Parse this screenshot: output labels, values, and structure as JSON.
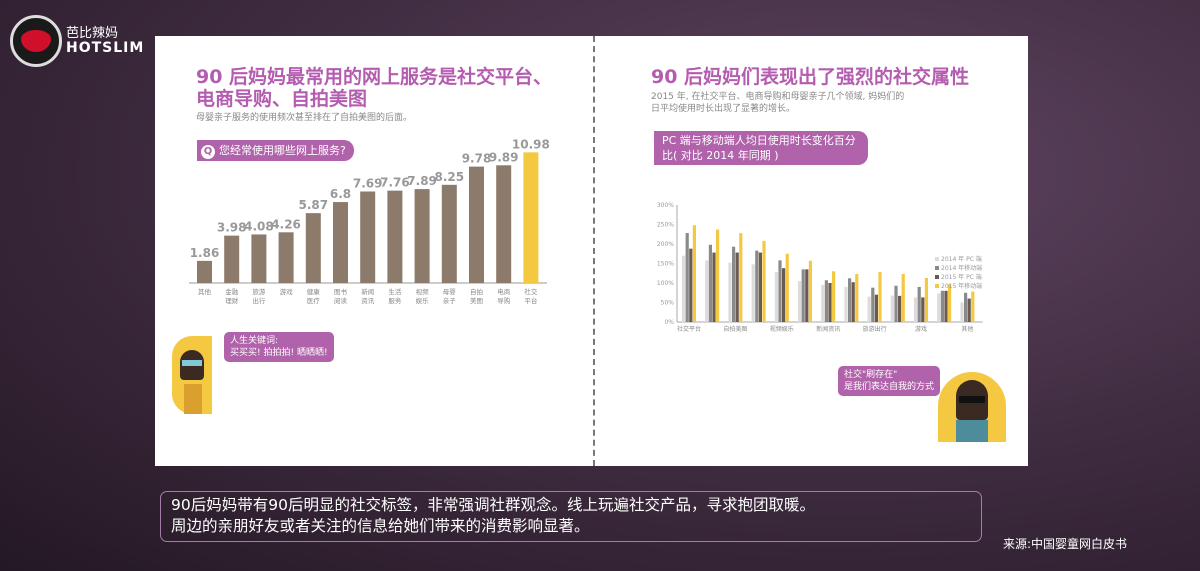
{
  "logo": {
    "cn": "芭比辣妈",
    "en": "HOTSLIM"
  },
  "left": {
    "title_line1": "90 后妈妈最常用的网上服务是社交平台、",
    "title_line2": "电商导购、自拍美图",
    "subtitle": "母婴亲子服务的使用频次甚至排在了自拍美图的后面。",
    "question_icon": "Q",
    "question": "您经常使用哪些网上服务?",
    "bubble_line1": "人生关键词:",
    "bubble_line2": "买买买! 拍拍拍! 晒晒晒!"
  },
  "right": {
    "title": "90 后妈妈们表现出了强烈的社交属性",
    "subtitle_line1": "2015 年, 在社交平台、电商导购和母婴亲子几个领域, 妈妈们的",
    "subtitle_line2": "日平均使用时长出现了显著的增长。",
    "banner_line1": "PC 端与移动端人均日使用时长变化百分",
    "banner_line2": "比( 对比 2014 年同期 )",
    "bubble_line1": "社交\"刷存在\"",
    "bubble_line2": "是我们表达自我的方式"
  },
  "caption_line1": "90后妈妈带有90后明显的社交标签，非常强调社群观念。线上玩遍社交产品，寻求抱团取暖。",
  "caption_line2": "周边的亲朋好友或者关注的信息给她们带来的消费影响显著。",
  "source": "来源:中国婴童网白皮书",
  "chart_data": [
    {
      "type": "bar",
      "title": "",
      "categories": [
        "其他",
        "金融\n理财",
        "旅游\n出行",
        "游戏",
        "健康\n医疗",
        "图书\n阅读",
        "新闻\n资讯",
        "生活\n服务",
        "视频\n娱乐",
        "母婴\n亲子",
        "自拍\n美图",
        "电商\n导购",
        "社交\n平台"
      ],
      "values": [
        1.86,
        3.98,
        4.08,
        4.26,
        5.87,
        6.8,
        7.69,
        7.76,
        7.89,
        8.25,
        9.78,
        9.89,
        10.98
      ],
      "colors": {
        "bar": "#8c7a6b",
        "highlight": "#f5c842"
      },
      "highlight_index": 12,
      "grid": false
    },
    {
      "type": "bar",
      "title": "",
      "categories": [
        "社交平台",
        "",
        "自拍美图",
        "",
        "视频娱乐",
        "",
        "新闻资讯",
        "",
        "旅游出行",
        "",
        "游戏",
        "",
        "其他"
      ],
      "yticks": [
        "0%",
        "50%",
        "100%",
        "150%",
        "200%",
        "250%",
        "300%"
      ],
      "ylim": [
        0,
        300
      ],
      "legend": "right",
      "grid": false,
      "series": [
        {
          "name": "2014 年 PC 端",
          "color": "#dcdcdc",
          "values": [
            170,
            158,
            152,
            148,
            128,
            105,
            95,
            90,
            65,
            68,
            63,
            73,
            50
          ]
        },
        {
          "name": "2014 年移动端",
          "color": "#8a8a8a",
          "values": [
            228,
            198,
            193,
            183,
            158,
            135,
            107,
            112,
            88,
            93,
            90,
            80,
            75
          ]
        },
        {
          "name": "2015 年 PC 端",
          "color": "#6b5a4e",
          "values": [
            188,
            178,
            178,
            178,
            138,
            135,
            100,
            102,
            70,
            67,
            63,
            80,
            60
          ]
        },
        {
          "name": "2015 年移动端",
          "color": "#f5c842",
          "values": [
            248,
            237,
            228,
            208,
            175,
            157,
            130,
            123,
            128,
            123,
            113,
            97,
            78
          ]
        }
      ]
    }
  ]
}
